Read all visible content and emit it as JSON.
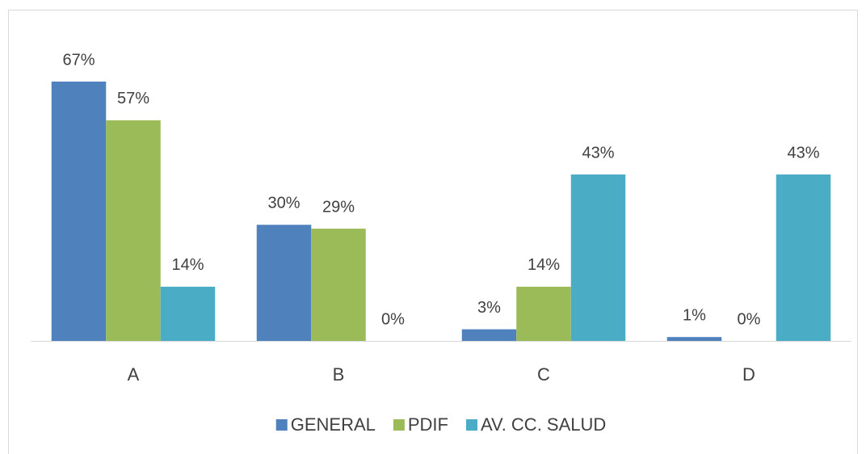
{
  "chart_data": {
    "type": "bar",
    "categories": [
      "A",
      "B",
      "C",
      "D"
    ],
    "series": [
      {
        "name": "GENERAL",
        "color": "#4f81bd",
        "values": [
          67,
          30,
          3,
          1
        ],
        "value_labels": [
          "67%",
          "30%",
          "3%",
          "1%"
        ]
      },
      {
        "name": "PDIF",
        "color": "#9bbb59",
        "values": [
          57,
          29,
          14,
          0
        ],
        "value_labels": [
          "57%",
          "29%",
          "14%",
          "0%"
        ]
      },
      {
        "name": "AV. CC. SALUD",
        "color": "#4bacc6",
        "values": [
          14,
          0,
          43,
          43
        ],
        "value_labels": [
          "14%",
          "0%",
          "43%",
          "43%"
        ]
      }
    ],
    "legend": "bottom"
  }
}
